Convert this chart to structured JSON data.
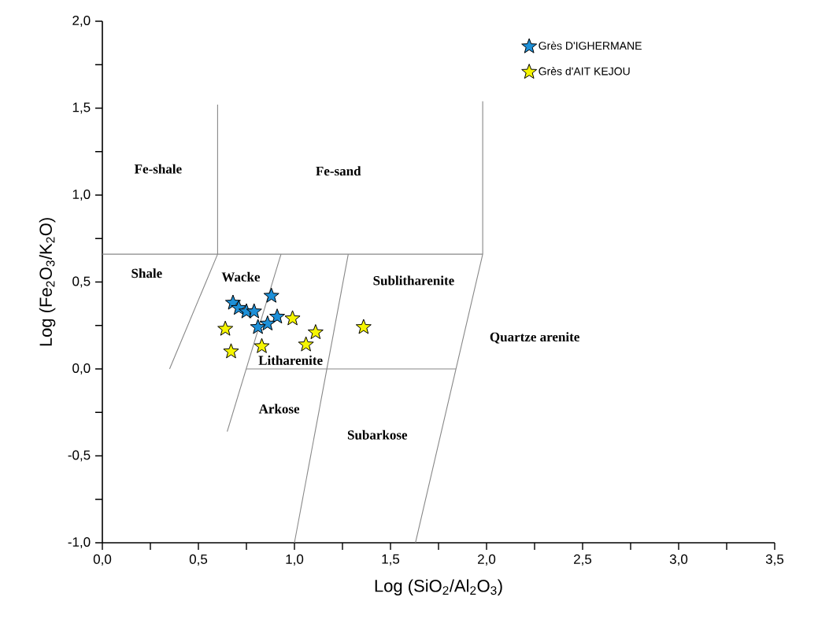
{
  "chart_data": {
    "type": "scatter",
    "xlabel": "Log (SiO$_{2}$/Al$_{2}$O$_{3}$)",
    "ylabel": "Log (Fe$_{2}$O$_{3}$/K$_{2}$O)",
    "xlim": [
      0,
      3.5
    ],
    "ylim": [
      -1,
      2
    ],
    "xticks": [
      {
        "value": 0,
        "label": "0,0"
      },
      {
        "value": 0.25,
        "label": null
      },
      {
        "value": 0.5,
        "label": "0,5"
      },
      {
        "value": 0.75,
        "label": null
      },
      {
        "value": 1,
        "label": "1,0"
      },
      {
        "value": 1.25,
        "label": null
      },
      {
        "value": 1.5,
        "label": "1,5"
      },
      {
        "value": 1.75,
        "label": null
      },
      {
        "value": 2,
        "label": "2,0"
      },
      {
        "value": 2.25,
        "label": null
      },
      {
        "value": 2.5,
        "label": "2,5"
      },
      {
        "value": 2.75,
        "label": null
      },
      {
        "value": 3,
        "label": "3,0"
      },
      {
        "value": 3.25,
        "label": null
      },
      {
        "value": 3.5,
        "label": "3,5"
      }
    ],
    "yticks": [
      {
        "value": -1,
        "label": "-1,0"
      },
      {
        "value": -0.75,
        "label": null
      },
      {
        "value": -0.5,
        "label": "-0,5"
      },
      {
        "value": -0.25,
        "label": null
      },
      {
        "value": 0,
        "label": "0,0"
      },
      {
        "value": 0.25,
        "label": null
      },
      {
        "value": 0.5,
        "label": "0,5"
      },
      {
        "value": 0.75,
        "label": null
      },
      {
        "value": 1,
        "label": "1,0"
      },
      {
        "value": 1.25,
        "label": null
      },
      {
        "value": 1.5,
        "label": "1,5"
      },
      {
        "value": 1.75,
        "label": null
      },
      {
        "value": 2,
        "label": "2,0"
      }
    ],
    "legend": "top right",
    "grid": false,
    "series": [
      {
        "name": "Grès D'IGHERMANE",
        "color": "#1e90d8",
        "marker": "star",
        "x": [
          0.68,
          0.71,
          0.75,
          0.79,
          0.88,
          0.91,
          0.86,
          0.81
        ],
        "values": [
          0.38,
          0.35,
          0.33,
          0.33,
          0.42,
          0.3,
          0.26,
          0.24
        ]
      },
      {
        "name": "Grès d'AIT KEJOU",
        "color": "#f5f500",
        "marker": "star",
        "x": [
          0.99,
          0.64,
          0.67,
          0.83,
          1.06,
          1.11,
          1.36
        ],
        "values": [
          0.29,
          0.23,
          0.1,
          0.13,
          0.14,
          0.21,
          0.24
        ]
      },
      {
        "type": "line",
        "marker": "none",
        "color": "#888888",
        "x": [
          0,
          1.98
        ],
        "values": [
          0.66,
          0.66
        ]
      },
      {
        "type": "line",
        "marker": "none",
        "color": "#888888",
        "x": [
          0.6,
          0.6,
          0.35
        ],
        "values": [
          1.52,
          0.66,
          0
        ]
      },
      {
        "type": "line",
        "marker": "none",
        "color": "#888888",
        "x": [
          1.98,
          1.98,
          1.63
        ],
        "values": [
          1.54,
          0.66,
          -1
        ]
      },
      {
        "type": "line",
        "marker": "none",
        "color": "#888888",
        "x": [
          0.93,
          0.65
        ],
        "values": [
          0.66,
          -0.36
        ]
      },
      {
        "type": "line",
        "marker": "none",
        "color": "#888888",
        "x": [
          1.28,
          1.0
        ],
        "values": [
          0.66,
          -1
        ]
      },
      {
        "type": "line",
        "marker": "none",
        "color": "#888888",
        "x": [
          0.75,
          1.84
        ],
        "values": [
          0,
          0
        ]
      }
    ],
    "annotations": [
      "Fe-shale",
      "Fe-sand",
      "Shale",
      "Wacke",
      "Sublitharenite",
      "Litharenite",
      "Quartze arenite",
      "Arkose",
      "Subarkose"
    ]
  }
}
